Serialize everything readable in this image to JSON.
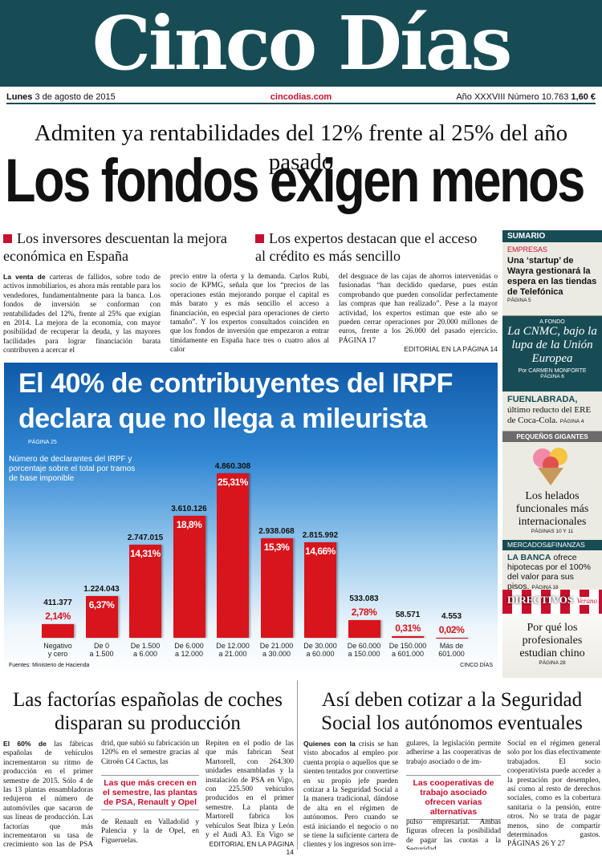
{
  "masthead": {
    "title": "Cinco Días",
    "date_day": "Lunes",
    "date": "3 de agosto de 2015",
    "website": "cincodias.com",
    "edition": "Año XXXVIII Número 10.763",
    "price": "1,60 €"
  },
  "lead": {
    "kicker": "Admiten ya rentabilidades del 12% frente al 25% del año pasado",
    "headline": "Los fondos exigen menos",
    "subheads": [
      "Los inversores descuentan la mejora económica en España",
      "Los expertos destacan que el acceso al crédito es más sencillo"
    ],
    "lede": "La venta de",
    "columns": [
      "carteras de fallidos, sobre todo de activos inmobiliarios, es ahora más rentable para los vendedores, fundamentalmente para la banca. Los fondos de inversión se conforman con rentabilidades del 12%, frente al 25% que exigían en 2014. La mejora de la economía, con mayor posibilidad de recuperar la deuda, y las mayores facilidades para lograr financiación barata contribuyen a acercar el",
      "precio entre la oferta y la demanda. Carlos Rubí, socio de KPMG, señala que los “precios de las operaciones están mejorando porque el capital es más barato y es más sencillo el acceso a financiación, en especial para operaciones de cierto tamaño”. Y los expertos consultados coinciden en que los fondos de inversión que empezaron a entrar tímidamente en España hace tres o cuatro años al calor",
      "del desguace de las cajas de ahorros intervenidas o fusionadas “han decidido quedarse, pues están comprobando que pueden consolidar perfectamente las compras que han realizado”. Pese a la mayor actividad, los expertos estiman que este año se pueden cerrar operaciones por 20.000 millones de euros, frente a los 26.000 del pasado ejercicio. PÁGINA 17"
    ],
    "ref": "EDITORIAL EN LA PÁGINA 14"
  },
  "chart_data": {
    "type": "bar",
    "title": "El 40% de contribuyentes del IRPF declara que no llega a mileurista",
    "page": "PÁGINA 25",
    "subtitle": "Número de declarantes del IRPF y porcentaje sobre el total por tramos de base imponible",
    "categories": [
      "Negativo\ny cero",
      "De 0\na 1.500",
      "De 1.500\na 6.000",
      "De 6.000\na 12.000",
      "De 12.000\na 21.000",
      "De 21.000\na 30.000",
      "De 30.000\na 60.000",
      "De 60.000\na 150.000",
      "De 150.000\na 601.000",
      "Más de\n601.000"
    ],
    "series": [
      {
        "name": "Número de declarantes",
        "color": "#d8141c",
        "values": [
          411377,
          1224043,
          2747015,
          3610126,
          4860308,
          2938068,
          2815992,
          533083,
          58571,
          4553
        ],
        "value_labels": [
          "411.377",
          "1.224.043",
          "2.747.015",
          "3.610.126",
          "4.860.308",
          "2.938.068",
          "2.815.992",
          "533.083",
          "58.571",
          "4.553"
        ]
      },
      {
        "name": "Porcentaje sobre el total",
        "values": [
          2.14,
          6.37,
          14.31,
          18.8,
          25.31,
          15.3,
          14.66,
          2.78,
          0.31,
          0.02
        ],
        "value_labels": [
          "2,14%",
          "6,37%",
          "14,31%",
          "18,8%",
          "25,31%",
          "15,3%",
          "14,66%",
          "2,78%",
          "0,31%",
          "0,02%"
        ]
      }
    ],
    "source": "Fuentes: Ministerio de Hacienda",
    "credit": "CINCO DÍAS"
  },
  "sidebar": {
    "header": "SUMARIO",
    "empresas": {
      "section": "EMPRESAS",
      "text": "Una ‘startup’ de Wayra gestionará la espera en las tiendas de Telefónica",
      "page": "PÁGINA 5"
    },
    "afondo": {
      "section": "A FONDO",
      "text": "La CNMC, bajo la lupa de la Unión Europea",
      "byline": "Por CARMEN MONFORTE",
      "page": "PÁGINA 6"
    },
    "fuenlabrada": {
      "lead": "FUENLABRADA,",
      "text": "último reducto del ERE de Coca-Cola.",
      "page": "PÁGINA 4"
    },
    "pequenos": {
      "section": "PEQUEÑOS GIGANTES",
      "text": "Los helados funcionales más internacionales",
      "page": "PÁGINAS 10 Y 11"
    },
    "mercados": {
      "section": "MERCADOS&FINANZAS",
      "lead": "LA BANCA",
      "text": "ofrece hipotecas por el 100% del valor para sus pisos.",
      "page": "PÁGINA 18"
    },
    "directivos": {
      "section": "DIRECTIVOS",
      "tag": "Verano",
      "text": "Por qué los profesionales estudian chino",
      "page": "PÁGINA 28"
    }
  },
  "stories": [
    {
      "headline": "Las factorías españolas de coches disparan su producción",
      "lede": "El 60% de",
      "columns": [
        "las fábricas españolas de vehículos incrementaron su ritmo de producción en el primer semestre de 2015. Sólo 4 de las 13 plantas ensambladoras redujeron el número de automóviles que sacaron de sus líneas de producción. Las factorías que más incrementaron su tasa de crecimiento son las de PSA Ma-",
        "drid, que subió su fabricación un 120% en el semestre gracias al Citroën C4 Cactus, las",
        "de Renault en Valladolid y Palencia y la de Opel, en Figueruelas.",
        "Repiten en el podio de las que más fabrican Seat Martorell, con 264.300 unidades ensambladas y la instalación de PSA en Vigo, con 225.500 vehículos producidos en el primer semestre. La planta de Martorell fabrica los vehículos Seat Ibiza y León y el Audi A3. En Vigo se ensamblan seis furgonetas. PÁGINA 3"
      ],
      "highlight": "Las que más crecen en el semestre, las plantas de PSA, Renault y Opel",
      "ref": "EDITORIAL EN LA PÁGINA 14"
    },
    {
      "headline": "Así deben cotizar a la Seguridad Social los autónomos eventuales",
      "lede": "Quienes con la",
      "columns": [
        "crisis se han visto abocados al empleo por cuenta propia o aquellos que se sienten tentados por convertirse en su propio jefe pueden cotizar a la Seguridad Social a la manera tradicional, dándose de alta en el régimen de autónomos. Pero cuando se está iniciando el negocio o no se tiene la suficiente cartera de clientes y los ingresos son irre-",
        "gulares, la legislación permite adherirse a las cooperativas de trabajo asociado o de im-",
        "pulso empresarial. Ambas figuras ofrecen la posibilidad de pagar las cuotas a la Seguridad",
        "Social en el régimen general solo por los días efectivamente trabajados. El socio cooperativista puede acceder a la prestación por desempleo, así como al resto de derechos sociales, como es la cobertura sanitaria o la pensión, entre otros. No se trata de pagar menos, sino de compartir determinados gastos. PÁGINAS 26 Y 27"
      ],
      "highlight": "Las cooperativas de trabajo asociado ofrecen varias alternativas"
    }
  ]
}
